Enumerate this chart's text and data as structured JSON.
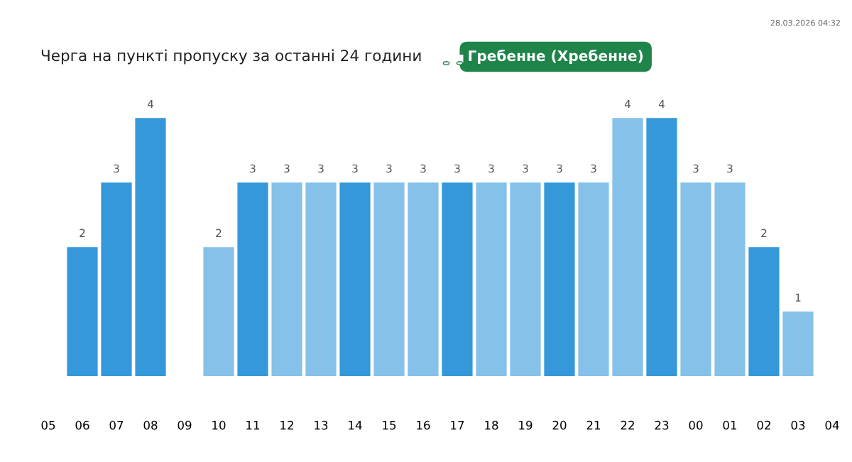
{
  "chart_data": {
    "type": "bar",
    "title": "Черга на пункті пропуску за останні 24 години",
    "categories": [
      "05",
      "06",
      "07",
      "08",
      "09",
      "10",
      "11",
      "12",
      "13",
      "14",
      "15",
      "16",
      "17",
      "18",
      "19",
      "20",
      "21",
      "22",
      "23",
      "00",
      "01",
      "02",
      "03",
      "04"
    ],
    "values": [
      null,
      2,
      3,
      4,
      null,
      2,
      3,
      3,
      3,
      3,
      3,
      3,
      3,
      3,
      3,
      3,
      3,
      4,
      4,
      3,
      3,
      2,
      1,
      null
    ],
    "colors": [
      null,
      "#3498db",
      "#3498db",
      "#3498db",
      null,
      "#85c1e9",
      "#3498db",
      "#85c1e9",
      "#85c1e9",
      "#3498db",
      "#85c1e9",
      "#85c1e9",
      "#3498db",
      "#85c1e9",
      "#85c1e9",
      "#3498db",
      "#85c1e9",
      "#85c1e9",
      "#3498db",
      "#85c1e9",
      "#85c1e9",
      "#3498db",
      "#85c1e9",
      null
    ],
    "data_labels": true,
    "grid": false,
    "legend": false,
    "annotations": [
      "Гребенне (Хребенне)",
      "28.03.2026 04:32"
    ]
  }
}
